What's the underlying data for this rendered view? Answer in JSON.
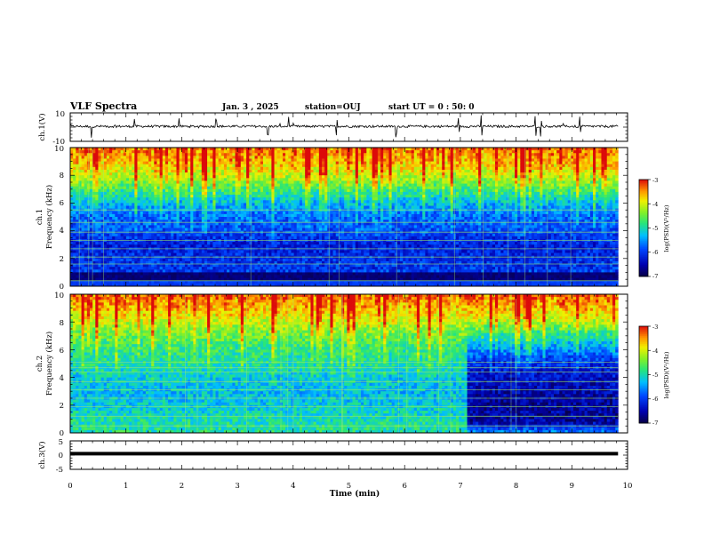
{
  "header": {
    "title": "VLF Spectra",
    "date": "Jan. 3 , 2025",
    "station": "station=OUJ",
    "start": "start UT = 0 : 50: 0"
  },
  "chart_data": [
    {
      "type": "line",
      "panel": "waveform-ch1",
      "ylabel": "ch.1(V)",
      "ylim": [
        -10,
        10
      ],
      "yticks": [
        "10",
        "-10"
      ],
      "description_baseline": 0.5,
      "spikes_min": [
        0.38,
        1.15,
        1.95,
        2.62,
        3.55,
        3.92,
        4.78,
        5.85,
        6.97,
        7.38,
        8.35,
        8.45,
        9.15
      ],
      "line_color": "#000000"
    },
    {
      "type": "heatmap",
      "panel": "spectrogram-ch1",
      "ylabel": "ch.1\nFrequency (kHz)",
      "ylabel_line1": "ch.1",
      "ylabel_line2": "Frequency (kHz)",
      "ylim": [
        0,
        10
      ],
      "yticks": [
        "0",
        "2",
        "4",
        "6",
        "8",
        "10"
      ],
      "xlim_min": [
        0,
        9.83
      ],
      "colorbar": {
        "label": "log(PSD)(V²/Hz)",
        "min": -7,
        "max": -3,
        "ticks": [
          "-3",
          "-4",
          "-5",
          "-6",
          "-7"
        ]
      },
      "level_profile": [
        [
          0,
          -6.8
        ],
        [
          0.6,
          -6.9
        ],
        [
          1.0,
          -6.0
        ],
        [
          2.0,
          -6.1
        ],
        [
          3.0,
          -6.2
        ],
        [
          4.0,
          -5.9
        ],
        [
          5.0,
          -5.8
        ],
        [
          6.0,
          -5.4
        ],
        [
          7.0,
          -4.8
        ],
        [
          8.0,
          -4.2
        ],
        [
          9.0,
          -3.8
        ],
        [
          10.0,
          -3.6
        ]
      ],
      "horizontal_lines_khz": [
        0.4,
        1.6,
        2.1,
        2.7,
        3.3,
        3.9,
        4.6,
        5.5
      ]
    },
    {
      "type": "heatmap",
      "panel": "spectrogram-ch2",
      "ylabel": "ch.2\nFrequency (kHz)",
      "ylabel_line1": "ch.2",
      "ylabel_line2": "Frequency (kHz)",
      "ylim": [
        0,
        10
      ],
      "yticks": [
        "0",
        "2",
        "4",
        "6",
        "8",
        "10"
      ],
      "xlim_min": [
        0,
        9.83
      ],
      "colorbar": {
        "label": "log(PSD)(V²/Hz)",
        "min": -7,
        "max": -3,
        "ticks": [
          "-3",
          "-4",
          "-5",
          "-6",
          "-7"
        ]
      },
      "level_before_7_1min": [
        [
          0,
          -4.9
        ],
        [
          1,
          -5.0
        ],
        [
          2,
          -5.2
        ],
        [
          3,
          -5.3
        ],
        [
          4,
          -5.2
        ],
        [
          5,
          -5.0
        ],
        [
          6,
          -4.9
        ],
        [
          7,
          -4.6
        ],
        [
          8,
          -4.2
        ],
        [
          9,
          -3.8
        ],
        [
          10,
          -3.5
        ]
      ],
      "level_after_7_1min": [
        [
          0,
          -5.5
        ],
        [
          0.8,
          -6.6
        ],
        [
          2,
          -6.6
        ],
        [
          4,
          -6.4
        ],
        [
          5,
          -6.2
        ],
        [
          6,
          -5.6
        ],
        [
          7,
          -5.0
        ],
        [
          8,
          -4.3
        ],
        [
          9,
          -3.8
        ],
        [
          10,
          -3.5
        ]
      ],
      "change_time_min": 7.1,
      "horizontal_lines_khz": [
        0.5,
        1.2,
        1.9,
        2.5,
        3.1,
        3.7,
        4.4,
        4.7,
        5.1
      ]
    },
    {
      "type": "line",
      "panel": "waveform-ch3",
      "ylabel": "ch.3(V)",
      "ylim": [
        -5,
        5
      ],
      "yticks": [
        "5",
        "0",
        "-5"
      ],
      "value": 0.5,
      "line_color": "#000000"
    }
  ],
  "xaxis": {
    "label": "Time (min)",
    "xlim": [
      0,
      10
    ],
    "ticks": [
      "0",
      "1",
      "2",
      "3",
      "4",
      "5",
      "6",
      "7",
      "8",
      "9",
      "10"
    ]
  }
}
